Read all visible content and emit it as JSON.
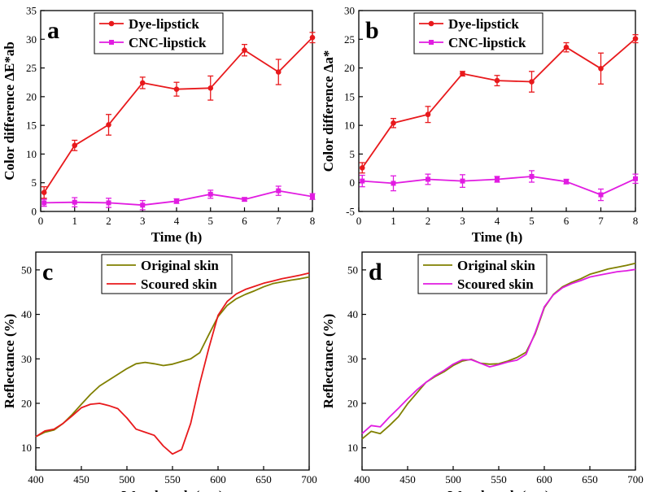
{
  "chart_data": [
    {
      "type": "line",
      "panel_label": "a",
      "xlabel": "Time (h)",
      "ylabel": "Color difference ΔE*ab",
      "xlim": [
        0,
        8
      ],
      "ylim": [
        0,
        35
      ],
      "xticks": [
        0,
        1,
        2,
        3,
        4,
        5,
        6,
        7,
        8
      ],
      "yticks": [
        0,
        5,
        10,
        15,
        20,
        25,
        30,
        35
      ],
      "grid": false,
      "legend_position": "top-center",
      "series": [
        {
          "name": "Dye-lipstick",
          "color": "#e8191c",
          "marker": "circle",
          "x": [
            0.1,
            1,
            2,
            3,
            4,
            5,
            6,
            7,
            8
          ],
          "y": [
            3.3,
            11.5,
            15.1,
            22.4,
            21.3,
            21.5,
            28.1,
            24.3,
            30.3
          ],
          "err": [
            1.0,
            0.9,
            1.8,
            1.0,
            1.2,
            2.1,
            1.0,
            2.2,
            0.9
          ]
        },
        {
          "name": "CNC-lipstick",
          "color": "#e11ce1",
          "marker": "square",
          "x": [
            0.1,
            1,
            2,
            3,
            4,
            5,
            6,
            7,
            8
          ],
          "y": [
            1.5,
            1.6,
            1.5,
            1.1,
            1.8,
            3.0,
            2.1,
            3.6,
            2.6
          ],
          "err": [
            0.6,
            0.8,
            0.8,
            0.8,
            0.4,
            0.7,
            0.3,
            0.8,
            0.5
          ]
        }
      ]
    },
    {
      "type": "line",
      "panel_label": "b",
      "xlabel": "Time (h)",
      "ylabel": "Color difference Δa*",
      "xlim": [
        0,
        8
      ],
      "ylim": [
        -5,
        30
      ],
      "xticks": [
        0,
        1,
        2,
        3,
        4,
        5,
        6,
        7,
        8
      ],
      "yticks": [
        -5,
        0,
        5,
        10,
        15,
        20,
        25,
        30
      ],
      "grid": false,
      "legend_position": "top-center",
      "series": [
        {
          "name": "Dye-lipstick",
          "color": "#e8191c",
          "marker": "circle",
          "x": [
            0.1,
            1,
            2,
            3,
            4,
            5,
            6,
            7,
            8
          ],
          "y": [
            2.6,
            10.4,
            11.9,
            19.0,
            17.8,
            17.6,
            23.6,
            19.9,
            25.1
          ],
          "err": [
            0.9,
            0.8,
            1.4,
            0.4,
            0.9,
            1.8,
            0.8,
            2.7,
            0.7
          ]
        },
        {
          "name": "CNC-lipstick",
          "color": "#e11ce1",
          "marker": "square",
          "x": [
            0.1,
            1,
            2,
            3,
            4,
            5,
            6,
            7,
            8
          ],
          "y": [
            0.3,
            -0.1,
            0.6,
            0.3,
            0.6,
            1.1,
            0.2,
            -2.1,
            0.7
          ],
          "err": [
            1.0,
            1.3,
            0.9,
            1.1,
            0.5,
            1.0,
            0.4,
            1.0,
            0.8
          ]
        }
      ]
    },
    {
      "type": "line",
      "panel_label": "c",
      "xlabel": "Wavelength (nm)",
      "ylabel": "Reflectance (%)",
      "xlim": [
        400,
        700
      ],
      "ylim": [
        5,
        54
      ],
      "xticks": [
        400,
        450,
        500,
        550,
        600,
        650,
        700
      ],
      "yticks": [
        10,
        20,
        30,
        40,
        50
      ],
      "grid": false,
      "legend_position": "top-left",
      "series": [
        {
          "name": "Original skin",
          "color": "#808000",
          "x": [
            400,
            410,
            420,
            430,
            440,
            450,
            460,
            470,
            480,
            490,
            500,
            510,
            520,
            530,
            540,
            550,
            560,
            570,
            580,
            590,
            600,
            610,
            620,
            630,
            640,
            650,
            660,
            670,
            680,
            690,
            700
          ],
          "y": [
            12.5,
            13.5,
            14.0,
            15.5,
            17.5,
            19.8,
            22.0,
            23.9,
            25.2,
            26.5,
            27.8,
            28.9,
            29.2,
            28.9,
            28.5,
            28.8,
            29.4,
            30.0,
            31.4,
            35.5,
            39.5,
            42.0,
            43.5,
            44.5,
            45.3,
            46.2,
            46.9,
            47.3,
            47.7,
            48.0,
            48.4
          ]
        },
        {
          "name": "Scoured skin",
          "color": "#e8191c",
          "x": [
            400,
            410,
            420,
            430,
            440,
            450,
            460,
            470,
            480,
            490,
            500,
            510,
            520,
            530,
            540,
            550,
            560,
            570,
            580,
            590,
            600,
            610,
            620,
            630,
            640,
            650,
            660,
            670,
            680,
            690,
            700
          ],
          "y": [
            12.5,
            13.8,
            14.2,
            15.5,
            17.2,
            19.0,
            19.8,
            20.0,
            19.5,
            18.8,
            16.7,
            14.2,
            13.5,
            12.8,
            10.4,
            8.6,
            9.6,
            15.5,
            24.5,
            32.5,
            39.8,
            42.9,
            44.6,
            45.6,
            46.3,
            47.0,
            47.5,
            48.0,
            48.4,
            48.8,
            49.3
          ]
        }
      ]
    },
    {
      "type": "line",
      "panel_label": "d",
      "xlabel": "Wavelength (nm)",
      "ylabel": "Reflectance (%)",
      "xlim": [
        400,
        700
      ],
      "ylim": [
        5,
        54
      ],
      "xticks": [
        400,
        450,
        500,
        550,
        600,
        650,
        700
      ],
      "yticks": [
        10,
        20,
        30,
        40,
        50
      ],
      "grid": false,
      "legend_position": "top-left",
      "series": [
        {
          "name": "Original skin",
          "color": "#808000",
          "x": [
            400,
            410,
            420,
            430,
            440,
            450,
            460,
            470,
            480,
            490,
            500,
            510,
            520,
            530,
            540,
            550,
            560,
            570,
            580,
            590,
            600,
            610,
            620,
            630,
            640,
            650,
            660,
            670,
            680,
            690,
            700
          ],
          "y": [
            12.0,
            13.7,
            13.2,
            15.0,
            17.0,
            19.9,
            22.3,
            24.7,
            26.0,
            27.1,
            28.5,
            29.5,
            29.9,
            29.0,
            28.8,
            28.9,
            29.5,
            30.3,
            31.5,
            35.6,
            41.5,
            44.5,
            46.2,
            47.2,
            48.0,
            49.0,
            49.6,
            50.2,
            50.6,
            51.0,
            51.5
          ]
        },
        {
          "name": "Scoured skin",
          "color": "#e11ce1",
          "x": [
            400,
            410,
            420,
            430,
            440,
            450,
            460,
            470,
            480,
            490,
            500,
            510,
            520,
            530,
            540,
            550,
            560,
            570,
            580,
            590,
            600,
            610,
            620,
            630,
            640,
            650,
            660,
            670,
            680,
            690,
            700
          ],
          "y": [
            13.2,
            15.0,
            14.7,
            16.9,
            18.9,
            21.0,
            23.0,
            24.7,
            26.2,
            27.4,
            28.8,
            29.8,
            29.8,
            29.0,
            28.2,
            28.7,
            29.3,
            29.7,
            31.0,
            35.9,
            41.7,
            44.4,
            46.0,
            46.9,
            47.6,
            48.4,
            48.8,
            49.2,
            49.6,
            49.8,
            50.1
          ]
        }
      ]
    }
  ]
}
